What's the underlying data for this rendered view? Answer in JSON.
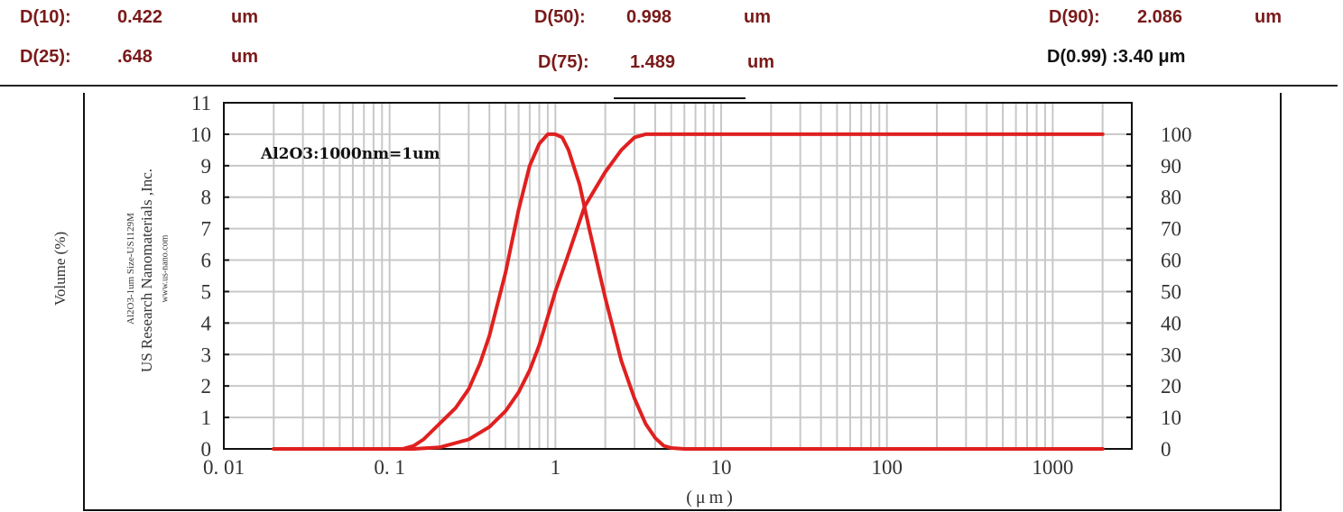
{
  "stats": {
    "d10_label": "D(10):",
    "d10_value": "0.422",
    "d10_unit": "um",
    "d25_label": "D(25):",
    "d25_value": ".648",
    "d25_unit": "um",
    "d50_label": "D(50):",
    "d50_value": "0.998",
    "d50_unit": "um",
    "d75_label": "D(75):",
    "d75_value": "1.489",
    "d75_unit": "um",
    "d90_label": "D(90):",
    "d90_value": "2.086",
    "d90_unit": "um",
    "d99_text": "D(0.99) :3.40 μm"
  },
  "side_text": {
    "line1": "Volume (%)",
    "line2": "Al2O3-1um Size-US1129M",
    "line3": "US Research Nanomaterials ,Inc.",
    "line4": "www.us-nano.com"
  },
  "chart_data": {
    "type": "line",
    "annotation": "Al2O3:1000nm=1um",
    "xlabel": "(μm)",
    "x_scale": "log",
    "xlim": [
      0.01,
      3000
    ],
    "x_ticks": [
      0.01,
      0.1,
      1,
      10,
      100,
      1000
    ],
    "x_tick_labels": [
      "0. 01",
      "0. 1",
      "1",
      "10",
      "100",
      "1000"
    ],
    "ylim_left": [
      0,
      11
    ],
    "y_left_ticks": [
      0,
      1,
      2,
      3,
      4,
      5,
      6,
      7,
      8,
      9,
      10,
      11
    ],
    "ylim_right": [
      0,
      110
    ],
    "y_right_ticks": [
      0,
      10,
      20,
      30,
      40,
      50,
      60,
      70,
      80,
      90,
      100
    ],
    "grid": true,
    "color": "#e02020",
    "series": [
      {
        "axis": "left",
        "x": [
          0.02,
          0.12,
          0.14,
          0.16,
          0.2,
          0.25,
          0.3,
          0.35,
          0.4,
          0.5,
          0.6,
          0.7,
          0.8,
          0.9,
          1.0,
          1.1,
          1.2,
          1.4,
          1.6,
          2.0,
          2.5,
          3.0,
          3.5,
          4.0,
          4.5,
          5.0,
          6.0,
          10,
          100,
          2000
        ],
        "y": [
          0,
          0,
          0.1,
          0.3,
          0.8,
          1.3,
          1.9,
          2.7,
          3.6,
          5.6,
          7.6,
          9.0,
          9.7,
          10.0,
          10.0,
          9.9,
          9.5,
          8.4,
          7.0,
          4.8,
          2.8,
          1.6,
          0.8,
          0.35,
          0.1,
          0.03,
          0,
          0,
          0,
          0
        ]
      },
      {
        "axis": "right",
        "x": [
          0.02,
          0.14,
          0.2,
          0.3,
          0.4,
          0.5,
          0.6,
          0.7,
          0.8,
          1.0,
          1.2,
          1.5,
          2.0,
          2.5,
          3.0,
          3.5,
          4.0,
          5.0,
          10,
          100,
          2000
        ],
        "y": [
          0,
          0,
          0.5,
          3,
          7,
          12,
          18,
          25,
          33,
          50,
          62,
          77,
          88,
          95,
          99,
          100,
          100,
          100,
          100,
          100,
          100
        ]
      }
    ]
  }
}
